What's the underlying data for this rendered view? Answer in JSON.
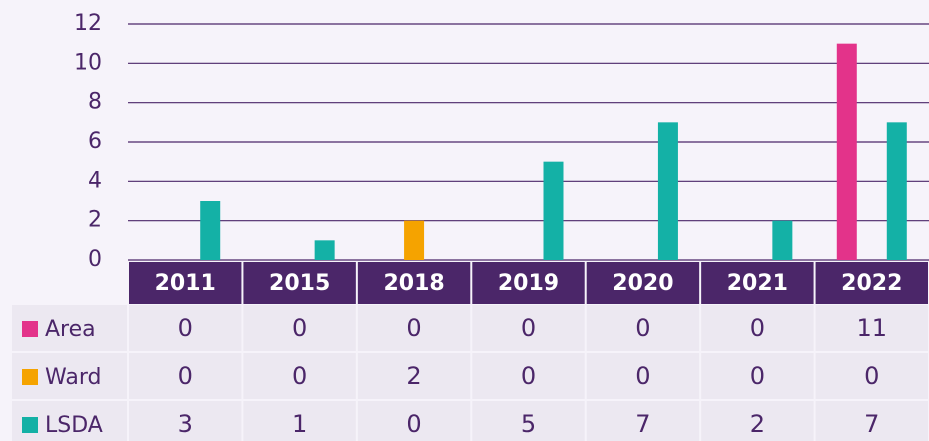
{
  "chart_data": {
    "type": "bar",
    "categories": [
      "2011",
      "2015",
      "2018",
      "2019",
      "2020",
      "2021",
      "2022"
    ],
    "series": [
      {
        "name": "Area",
        "color": "#e3338a",
        "values": [
          0,
          0,
          0,
          0,
          0,
          0,
          11
        ]
      },
      {
        "name": "Ward",
        "color": "#f5a300",
        "values": [
          0,
          0,
          2,
          0,
          0,
          0,
          0
        ]
      },
      {
        "name": "LSDA",
        "color": "#14b1a6",
        "values": [
          3,
          1,
          0,
          5,
          7,
          2,
          7
        ]
      }
    ],
    "ylim": [
      0,
      12
    ],
    "yticks": [
      0,
      2,
      4,
      6,
      8,
      10,
      12
    ],
    "grid": true
  }
}
